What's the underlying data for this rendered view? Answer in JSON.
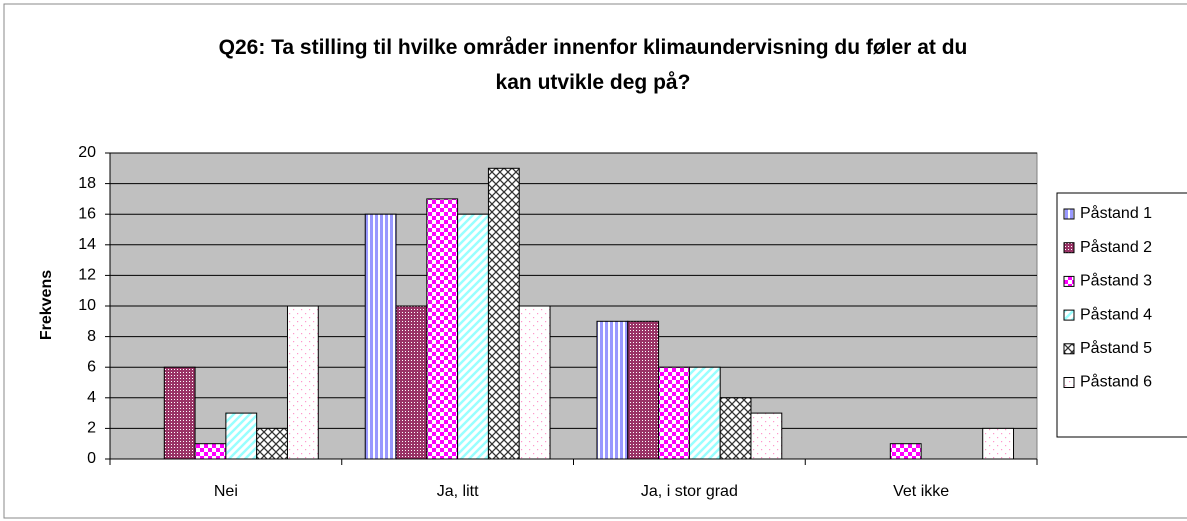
{
  "chart_data": {
    "type": "bar",
    "title": "Q26: Ta stilling til hvilke områder innenfor klimaundervisning du føler at du kan utvikle deg på?",
    "ylabel": "Frekvens",
    "categories": [
      "Nei",
      "Ja, litt",
      "Ja, i stor grad",
      "Vet ikke"
    ],
    "series": [
      {
        "name": "Påstand 1",
        "color": "#9999ff",
        "pattern": "vertical",
        "values": [
          0,
          16,
          9,
          0
        ]
      },
      {
        "name": "Påstand 2",
        "color": "#993366",
        "pattern": "dots",
        "values": [
          6,
          10,
          9,
          0
        ]
      },
      {
        "name": "Påstand 3",
        "color": "#ff00ff",
        "pattern": "checker",
        "values": [
          1,
          17,
          6,
          1
        ]
      },
      {
        "name": "Påstand 4",
        "color": "#99ffff",
        "pattern": "diagonal",
        "values": [
          3,
          16,
          6,
          0
        ]
      },
      {
        "name": "Påstand 5",
        "color": "#333333",
        "pattern": "crosshatch",
        "values": [
          2,
          19,
          4,
          0
        ]
      },
      {
        "name": "Påstand 6",
        "color": "#ff99cc",
        "pattern": "sparse-dots",
        "values": [
          10,
          10,
          3,
          2
        ]
      }
    ],
    "ylim": [
      0,
      20
    ],
    "yticks": [
      0,
      2,
      4,
      6,
      8,
      10,
      12,
      14,
      16,
      18,
      20
    ],
    "grid": true,
    "legend": "right",
    "plot_background": "#c0c0c0"
  }
}
